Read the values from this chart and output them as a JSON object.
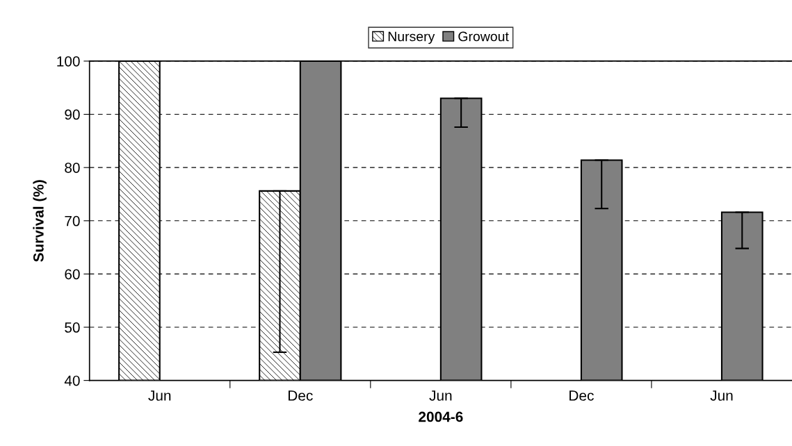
{
  "chart_data": {
    "type": "bar",
    "xlabel": "2004-6",
    "ylabel": "Survival (%)",
    "categories": [
      "Jun",
      "Dec",
      "Jun",
      "Dec",
      "Jun"
    ],
    "series": [
      {
        "name": "Nursery",
        "color": "#000000",
        "values": [
          100,
          75.6,
          null,
          null,
          null
        ],
        "errors": [
          null,
          [
            45.3,
            75.6
          ],
          null,
          null,
          null
        ]
      },
      {
        "name": "Growout",
        "color": "#808080",
        "values": [
          null,
          100,
          93.0,
          81.4,
          71.6
        ],
        "errors": [
          null,
          null,
          [
            87.6,
            93.0
          ],
          [
            72.3,
            81.4
          ],
          [
            64.8,
            71.6
          ]
        ]
      }
    ],
    "ylim": [
      40,
      100
    ],
    "yticks": [
      40,
      50,
      60,
      70,
      80,
      90,
      100
    ],
    "grid": "y",
    "legend": "top"
  }
}
